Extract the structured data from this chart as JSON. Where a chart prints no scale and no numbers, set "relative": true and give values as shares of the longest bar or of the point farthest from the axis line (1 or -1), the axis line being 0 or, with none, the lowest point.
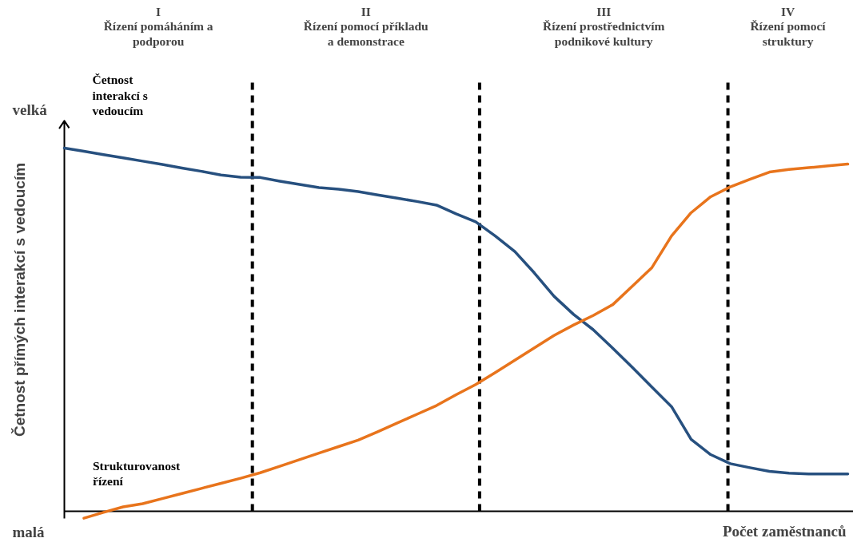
{
  "chart_data": {
    "type": "line",
    "relative": true,
    "xlabel": "Počet zaměstnanců",
    "ylabel": "Četnost přímých interakcí s vedoucím",
    "annotations": [
      "velká",
      "malá",
      "I\nŘízení pomáháním a\npodporou",
      "II\nŘízení pomocí příkladu\na demonstrace",
      "III\nŘízení prostřednictvím\npodnikové kultury",
      "IV\nŘízení pomocí\nstruktury"
    ],
    "categories": [
      null,
      null,
      null,
      null,
      null,
      null,
      null,
      null,
      null,
      null,
      null,
      null,
      null,
      null,
      null,
      null,
      null,
      null,
      null,
      null,
      null,
      null,
      null,
      null,
      null,
      null,
      null,
      null,
      null,
      null,
      null,
      null,
      null,
      null,
      null,
      null,
      null,
      null,
      null,
      null,
      null
    ],
    "series": [
      {
        "name": "Četnost interakcí s vedoucím",
        "color": "#27507f",
        "values": [
          1.0,
          0.991,
          0.982,
          0.973,
          0.964,
          0.955,
          0.945,
          0.936,
          0.926,
          0.92,
          0.919,
          0.909,
          0.9,
          0.891,
          0.887,
          0.88,
          0.871,
          0.862,
          0.853,
          0.843,
          0.819,
          0.797,
          0.758,
          0.715,
          0.656,
          0.592,
          0.542,
          0.5,
          0.449,
          0.396,
          0.342,
          0.288,
          0.198,
          0.156,
          0.131,
          0.12,
          0.11,
          0.105,
          0.103,
          0.103,
          0.103
        ]
      },
      {
        "name": "Strukturovanost řízení",
        "color": "#e8741c",
        "values": [
          null,
          -0.019,
          -0.003,
          0.012,
          0.021,
          0.035,
          0.049,
          0.063,
          0.077,
          0.091,
          0.106,
          0.124,
          0.142,
          0.16,
          0.178,
          0.196,
          0.219,
          0.243,
          0.267,
          0.291,
          0.321,
          0.349,
          0.382,
          0.416,
          0.45,
          0.484,
          0.513,
          0.539,
          0.569,
          0.62,
          0.671,
          0.758,
          0.822,
          0.866,
          0.893,
          0.914,
          0.934,
          0.941,
          0.946,
          0.951,
          0.956
        ]
      }
    ]
  }
}
